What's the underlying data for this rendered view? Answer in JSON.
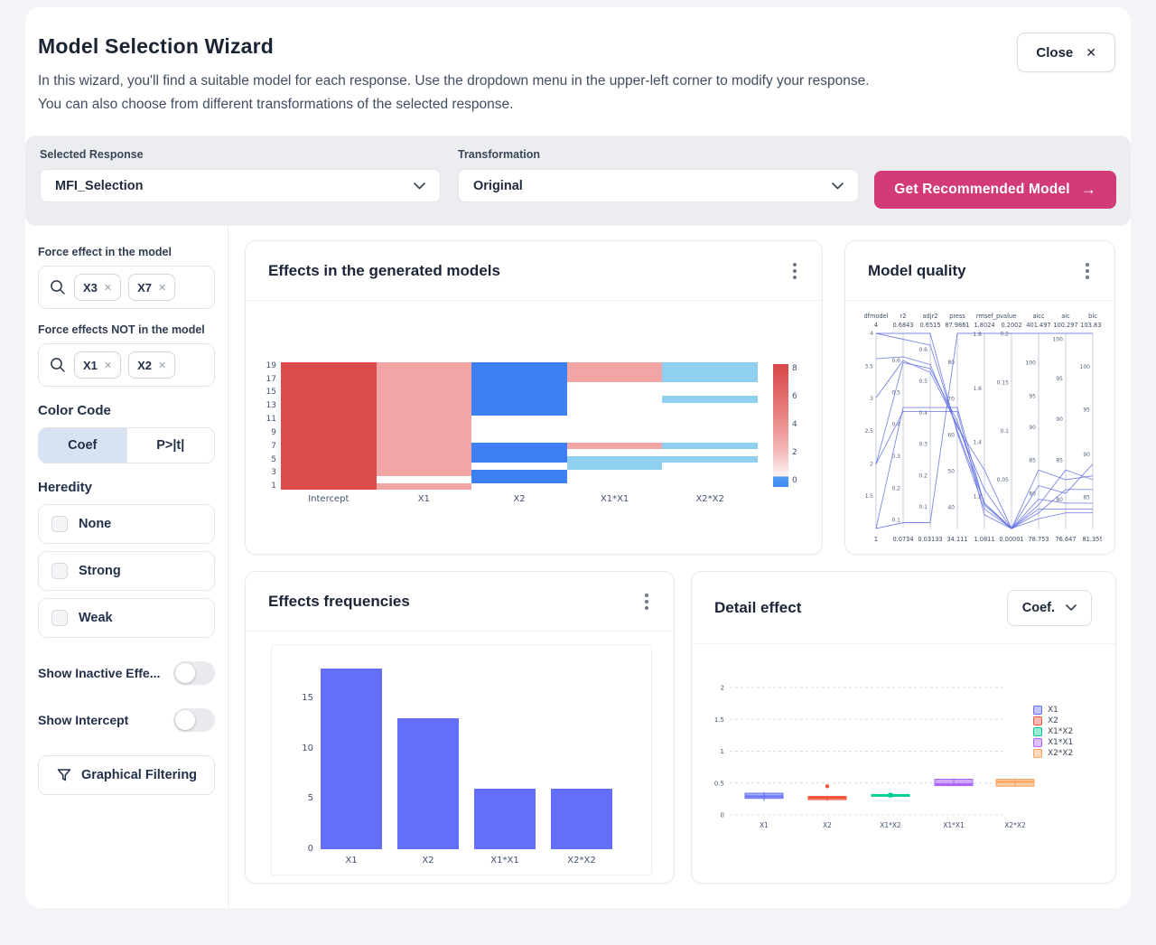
{
  "header": {
    "title": "Model Selection Wizard",
    "subtitle_line1": "In this wizard, you'll find a suitable model for each response. Use the dropdown menu in the upper-left corner to modify your response.",
    "subtitle_line2": "You can also choose from different transformations of the selected response.",
    "close_label": "Close",
    "close_icon": "✕"
  },
  "toolbar": {
    "selected_response_label": "Selected Response",
    "selected_response_value": "MFI_Selection",
    "transformation_label": "Transformation",
    "transformation_value": "Original",
    "cta_label": "Get Recommended Model",
    "cta_icon": "→",
    "cta_color": "#d23b78"
  },
  "sidebar": {
    "force_in": {
      "label": "Force effect in the model",
      "chips": [
        "X3",
        "X7"
      ]
    },
    "force_out": {
      "label": "Force effects NOT in the model",
      "chips": [
        "X1",
        "X2"
      ]
    },
    "color_code": {
      "label": "Color Code",
      "options": [
        {
          "label": "Coef",
          "active": true
        },
        {
          "label": "P>|t|",
          "active": false
        }
      ],
      "active_bg": "#d7e3f3"
    },
    "heredity": {
      "label": "Heredity",
      "options": [
        {
          "label": "None",
          "checked": false
        },
        {
          "label": "Strong",
          "checked": false
        },
        {
          "label": "Weak",
          "checked": false
        }
      ]
    },
    "toggles": [
      {
        "label": "Show Inactive Effe...",
        "on": false
      },
      {
        "label": "Show Intercept",
        "on": false
      }
    ],
    "filter_button": "Graphical Filtering"
  },
  "cards": {
    "effects_models": {
      "title": "Effects in the generated models"
    },
    "model_quality": {
      "title": "Model quality"
    },
    "effects_freq": {
      "title": "Effects frequencies"
    },
    "detail_effect": {
      "title": "Detail effect",
      "selector_value": "Coef."
    }
  },
  "chart_data": [
    {
      "type": "heatmap",
      "title": "Effects in the generated models",
      "x_categories": [
        "Intercept",
        "X1",
        "X2",
        "X1*X1",
        "X2*X2"
      ],
      "y_tick_labels": [
        "19",
        "17",
        "15",
        "13",
        "11",
        "9",
        "7",
        "5",
        "3",
        "1"
      ],
      "n_rows": 19,
      "cells_top_to_bottom": [
        "RPBPL",
        "RPBPL",
        "RPBPL",
        "RPBWW",
        "RPBWW",
        "RPBWL",
        "RPBWW",
        "RPBWW",
        "RPWWW",
        "RPWWW",
        "RPWWW",
        "RPWWW",
        "RPBPL",
        "RPBWW",
        "RPBLL",
        "RPWLW",
        "RPBWW",
        "RWBWW",
        "RPWWW"
      ],
      "palette": {
        "R": "#db4b4b",
        "P": "#f2a5a5",
        "B": "#3e7ff2",
        "L": "#8fd0f0",
        "W": "#ffffff"
      },
      "colorbar": {
        "ticks": [
          "8",
          "6",
          "4",
          "2",
          "0"
        ],
        "max": 8,
        "min_band_color": "#4596f0"
      }
    },
    {
      "type": "parallel_coordinates",
      "title": "Model quality",
      "line_color": "#5c6cdf",
      "axes": [
        {
          "header": "dfmodel",
          "top": "4",
          "bottom": "1",
          "ticks": [
            [
              "4",
              1
            ],
            [
              "3.5",
              0.833
            ],
            [
              "3",
              0.667
            ],
            [
              "2.5",
              0.5
            ],
            [
              "2",
              0.333
            ],
            [
              "1.5",
              0.167
            ]
          ]
        },
        {
          "header": "r2",
          "top": "0.6843",
          "bottom": "0.0734",
          "ticks": [
            [
              "0.6",
              0.862
            ],
            [
              "0.5",
              0.698
            ],
            [
              "0.4",
              0.535
            ],
            [
              "0.3",
              0.371
            ],
            [
              "0.2",
              0.207
            ],
            [
              "0.1",
              0.044
            ]
          ]
        },
        {
          "header": "adjr2",
          "top": "0.6515",
          "bottom": "0.03133",
          "ticks": [
            [
              "0.6",
              0.917
            ],
            [
              "0.5",
              0.756
            ],
            [
              "0.4",
              0.594
            ],
            [
              "0.3",
              0.433
            ],
            [
              "0.2",
              0.272
            ],
            [
              "0.1",
              0.111
            ]
          ]
        },
        {
          "header": "press",
          "top": "87.9861",
          "bottom": "34.111",
          "ticks": [
            [
              "80",
              0.852
            ],
            [
              "70",
              0.666
            ],
            [
              "60",
              0.48
            ],
            [
              "50",
              0.295
            ],
            [
              "40",
              0.109
            ]
          ]
        },
        {
          "header": "rmsef_pvalue",
          "top": "1.8024",
          "bottom": "1.0811",
          "ticks": [
            [
              "1.8",
              0.997
            ],
            [
              "1.6",
              0.719
            ],
            [
              "1.4",
              0.442
            ],
            [
              "1.2",
              0.165
            ]
          ]
        },
        {
          "header": "",
          "top": "0.2002",
          "bottom": "0.00001",
          "ticks": [
            [
              "0.2",
              0.999
            ],
            [
              "0.15",
              0.749
            ],
            [
              "0.1",
              0.5
            ],
            [
              "0.05",
              0.25
            ]
          ]
        },
        {
          "header": "aicc",
          "top": "401.497",
          "bottom": "78.753",
          "ticks": [
            [
              "100",
              0.85
            ],
            [
              "95",
              0.68
            ],
            [
              "90",
              0.52
            ],
            [
              "85",
              0.35
            ],
            [
              "80",
              0.18
            ]
          ]
        },
        {
          "header": "aic",
          "top": "100.297",
          "bottom": "76.647",
          "ticks": [
            [
              "100",
              0.97
            ],
            [
              "95",
              0.77
            ],
            [
              "90",
              0.56
            ],
            [
              "85",
              0.35
            ],
            [
              "80",
              0.15
            ]
          ]
        },
        {
          "header": "bic",
          "top": "103.832",
          "bottom": "81.359",
          "ticks": [
            [
              "100",
              0.83
            ],
            [
              "95",
              0.61
            ],
            [
              "90",
              0.38
            ],
            [
              "85",
              0.16
            ]
          ]
        }
      ],
      "lines": [
        [
          0.0,
          0.03,
          0.03,
          1.0,
          1.0,
          1.0,
          1.0,
          1.0,
          1.0
        ],
        [
          1.0,
          1.0,
          1.0,
          0.49,
          0.1,
          0.0,
          0.1,
          0.1,
          0.1
        ],
        [
          1.0,
          0.97,
          0.94,
          0.5,
          0.13,
          0.0,
          0.15,
          0.13,
          0.13
        ],
        [
          0.87,
          0.88,
          0.84,
          0.52,
          0.3,
          0.0,
          0.3,
          0.25,
          0.27
        ],
        [
          0.67,
          0.86,
          0.8,
          0.53,
          0.2,
          0.0,
          0.22,
          0.18,
          0.33
        ],
        [
          0.33,
          0.85,
          0.82,
          0.55,
          0.13,
          0.0,
          0.08,
          0.2,
          0.2
        ],
        [
          0.33,
          0.6,
          0.6,
          0.6,
          0.07,
          0.0,
          0.05,
          0.08,
          0.08
        ],
        [
          0.0,
          0.62,
          0.62,
          0.62,
          0.12,
          0.0,
          0.12,
          0.3,
          0.25
        ]
      ]
    },
    {
      "type": "bar",
      "title": "Effects frequencies",
      "categories": [
        "X1",
        "X2",
        "X1*X1",
        "X2*X2"
      ],
      "values": [
        18,
        13,
        6,
        6
      ],
      "y_ticks": [
        0,
        5,
        10,
        15
      ],
      "ylim": [
        0,
        19
      ],
      "bar_color": "#636efa",
      "xlabel": "",
      "ylabel": ""
    },
    {
      "type": "box",
      "title": "Detail effect",
      "metric": "Coef.",
      "categories": [
        "X1",
        "X2",
        "X1*X2",
        "X1*X1",
        "X2*X2"
      ],
      "y_ticks": [
        "0",
        "0.5",
        "1",
        "1.5",
        "2"
      ],
      "ylim": [
        0,
        2.6
      ],
      "grid": "dashed",
      "legend_position": "right",
      "series": [
        {
          "name": "X1",
          "color": "#636efa",
          "q1": 0.26,
          "q3": 0.34,
          "median": 0.29,
          "whisker_low": 0.22,
          "whisker_high": 0.36,
          "outliers": []
        },
        {
          "name": "X2",
          "color": "#ef553b",
          "q1": 0.24,
          "q3": 0.29,
          "median": 0.27,
          "whisker_low": 0.22,
          "whisker_high": 0.3,
          "outliers": [
            0.45
          ]
        },
        {
          "name": "X1*X2",
          "color": "#00cc96",
          "q1": 0.3,
          "q3": 0.32,
          "median": 0.31,
          "whisker_low": 0.29,
          "whisker_high": 0.33,
          "outliers": []
        },
        {
          "name": "X1*X1",
          "color": "#ab63fa",
          "q1": 0.46,
          "q3": 0.56,
          "median": 0.48,
          "whisker_low": 0.45,
          "whisker_high": 0.57,
          "outliers": []
        },
        {
          "name": "X2*X2",
          "color": "#ffa15a",
          "q1": 0.45,
          "q3": 0.56,
          "median": 0.52,
          "whisker_low": 0.44,
          "whisker_high": 0.57,
          "outliers": []
        }
      ],
      "legend": [
        "X1",
        "X2",
        "X1*X2",
        "X1*X1",
        "X2*X2"
      ]
    }
  ]
}
